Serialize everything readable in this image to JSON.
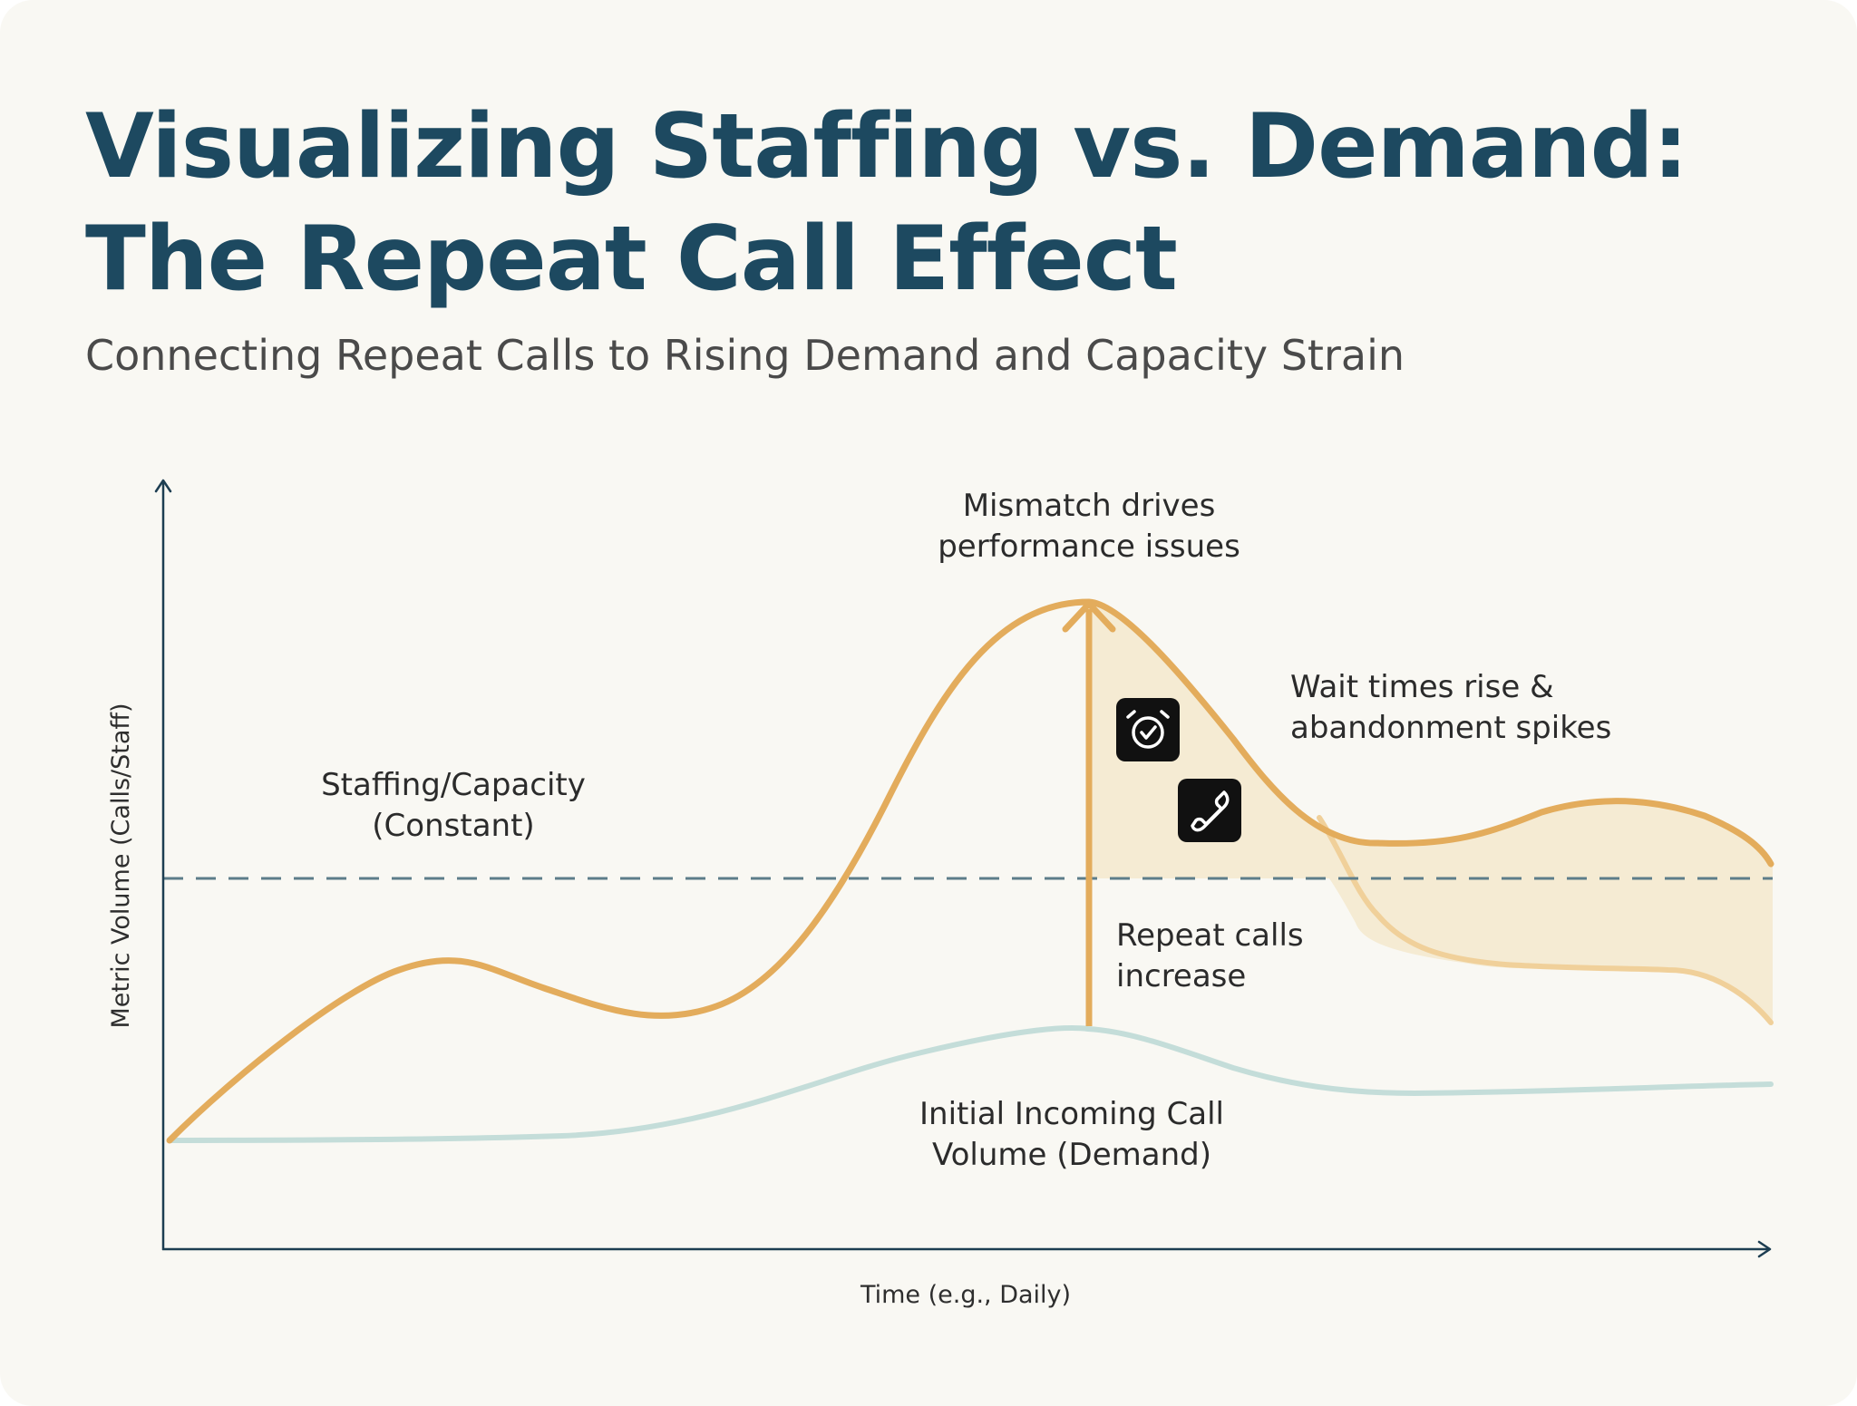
{
  "title": {
    "line1": "Visualizing Staffing vs. Demand:",
    "line2": "The Repeat Call Effect"
  },
  "subtitle": "Connecting Repeat Calls to Rising Demand and Capacity Strain",
  "axes": {
    "y_label": "Metric Volume (Calls/Staff)",
    "x_label": "Time (e.g., Daily)"
  },
  "annotations": {
    "mismatch": [
      "Mismatch drives",
      "performance issues"
    ],
    "staffing": [
      "Staffing/Capacity",
      "(Constant)"
    ],
    "wait": [
      "Wait times rise &",
      "abandonment spikes"
    ],
    "repeat": [
      "Repeat calls",
      "increase"
    ],
    "initial": [
      "Initial Incoming Call",
      "Volume (Demand)"
    ]
  },
  "icons": [
    "alarm-clock-check-icon",
    "phone-icon"
  ],
  "colors": {
    "title": "#1d4960",
    "total_demand": "#e3ac5c",
    "total_demand_light": "#f0d09a",
    "initial_demand": "#c4ddd9",
    "capacity": "#5d7d8a",
    "fill": "#f5ebd3",
    "axis": "#1d3e52",
    "background": "#f9f8f3"
  }
}
